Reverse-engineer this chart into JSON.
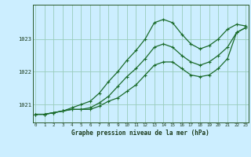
{
  "title": "Graphe pression niveau de la mer (hPa)",
  "bg_color": "#cceeff",
  "grid_color": "#99ccbb",
  "line_color": "#1a6b2a",
  "x_ticks": [
    0,
    1,
    2,
    3,
    4,
    5,
    6,
    7,
    8,
    9,
    10,
    11,
    12,
    13,
    14,
    15,
    16,
    17,
    18,
    19,
    20,
    21,
    22,
    23
  ],
  "y_ticks": [
    1021,
    1022,
    1023
  ],
  "ylim": [
    1020.45,
    1024.05
  ],
  "xlim": [
    -0.3,
    23.3
  ],
  "series1": [
    1020.7,
    1020.7,
    1020.75,
    1020.8,
    1020.85,
    1020.85,
    1020.85,
    1020.95,
    1021.1,
    1021.2,
    1021.4,
    1021.6,
    1021.9,
    1022.2,
    1022.3,
    1022.3,
    1022.1,
    1021.9,
    1021.85,
    1021.9,
    1022.1,
    1022.4,
    1023.2,
    1023.35
  ],
  "series2": [
    1020.7,
    1020.7,
    1020.75,
    1020.8,
    1020.85,
    1020.85,
    1020.9,
    1021.05,
    1021.25,
    1021.55,
    1021.85,
    1022.1,
    1022.4,
    1022.75,
    1022.85,
    1022.75,
    1022.5,
    1022.3,
    1022.2,
    1022.3,
    1022.5,
    1022.75,
    1023.2,
    1023.35
  ],
  "series3": [
    1020.7,
    1020.7,
    1020.75,
    1020.8,
    1020.9,
    1021.0,
    1021.1,
    1021.35,
    1021.7,
    1022.0,
    1022.35,
    1022.65,
    1023.0,
    1023.5,
    1023.6,
    1023.5,
    1023.15,
    1022.85,
    1022.7,
    1022.8,
    1023.0,
    1023.3,
    1023.45,
    1023.4
  ]
}
